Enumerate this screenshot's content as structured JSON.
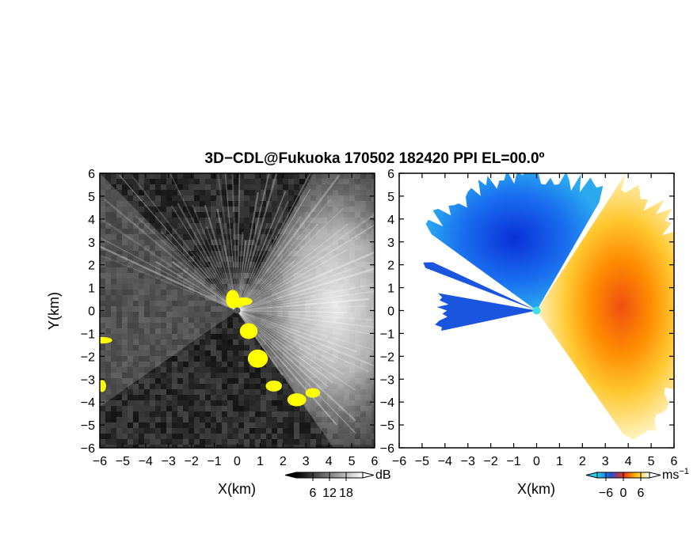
{
  "title": "3D−CDL@Fukuoka 170502 182420 PPI EL=00.0º",
  "colors": {
    "background": "#ffffff",
    "left_panel_bg": "#1c1c1c",
    "right_panel_bg": "#ffffff",
    "highlight": "#ffff00",
    "radar_center": "#40e0e8"
  },
  "chart_data": [
    {
      "type": "heatmap",
      "panel": "left",
      "quantity": "SNR",
      "xlabel": "X(km)",
      "ylabel": "Y(km)",
      "xlim": [
        -6,
        6
      ],
      "ylim": [
        -6,
        6
      ],
      "x_ticks": [
        "−6",
        "−5",
        "−4",
        "−3",
        "−2",
        "−1",
        "0",
        "1",
        "2",
        "3",
        "4",
        "5",
        "6"
      ],
      "y_ticks": [
        "6",
        "5",
        "4",
        "3",
        "2",
        "1",
        "0",
        "−1",
        "−2",
        "−3",
        "−4",
        "−5",
        "−6"
      ],
      "colorbar": {
        "unit": "dB",
        "ticks": [
          "6",
          "12",
          "18"
        ],
        "tick_values": [
          6,
          12,
          18
        ],
        "range": [
          0,
          24
        ],
        "colors": [
          "#000000",
          "#ffffff"
        ],
        "colormap": "grayscale",
        "extend": "both"
      },
      "grid": false
    },
    {
      "type": "heatmap",
      "panel": "right",
      "quantity": "radial velocity",
      "xlabel": "X(km)",
      "ylabel": "",
      "xlim": [
        -6,
        6
      ],
      "ylim": [
        -6,
        6
      ],
      "x_ticks": [
        "−6",
        "−5",
        "−4",
        "−3",
        "−2",
        "−1",
        "0",
        "1",
        "2",
        "3",
        "4",
        "5",
        "6"
      ],
      "y_ticks": [
        "6",
        "5",
        "4",
        "3",
        "2",
        "1",
        "0",
        "−1",
        "−2",
        "−3",
        "−4",
        "−5",
        "−6"
      ],
      "colorbar": {
        "unit": "ms",
        "unit_exponent": "−1",
        "ticks": [
          "−6",
          "0",
          "6"
        ],
        "tick_values": [
          -6,
          0,
          6
        ],
        "range": [
          -9,
          9
        ],
        "colors": [
          "#2ad0f0",
          "#1a55e0",
          "#f03010",
          "#ffc400",
          "#ffffff"
        ],
        "colormap": "blue-red-yellow",
        "extend": "both"
      },
      "grid": false
    }
  ]
}
